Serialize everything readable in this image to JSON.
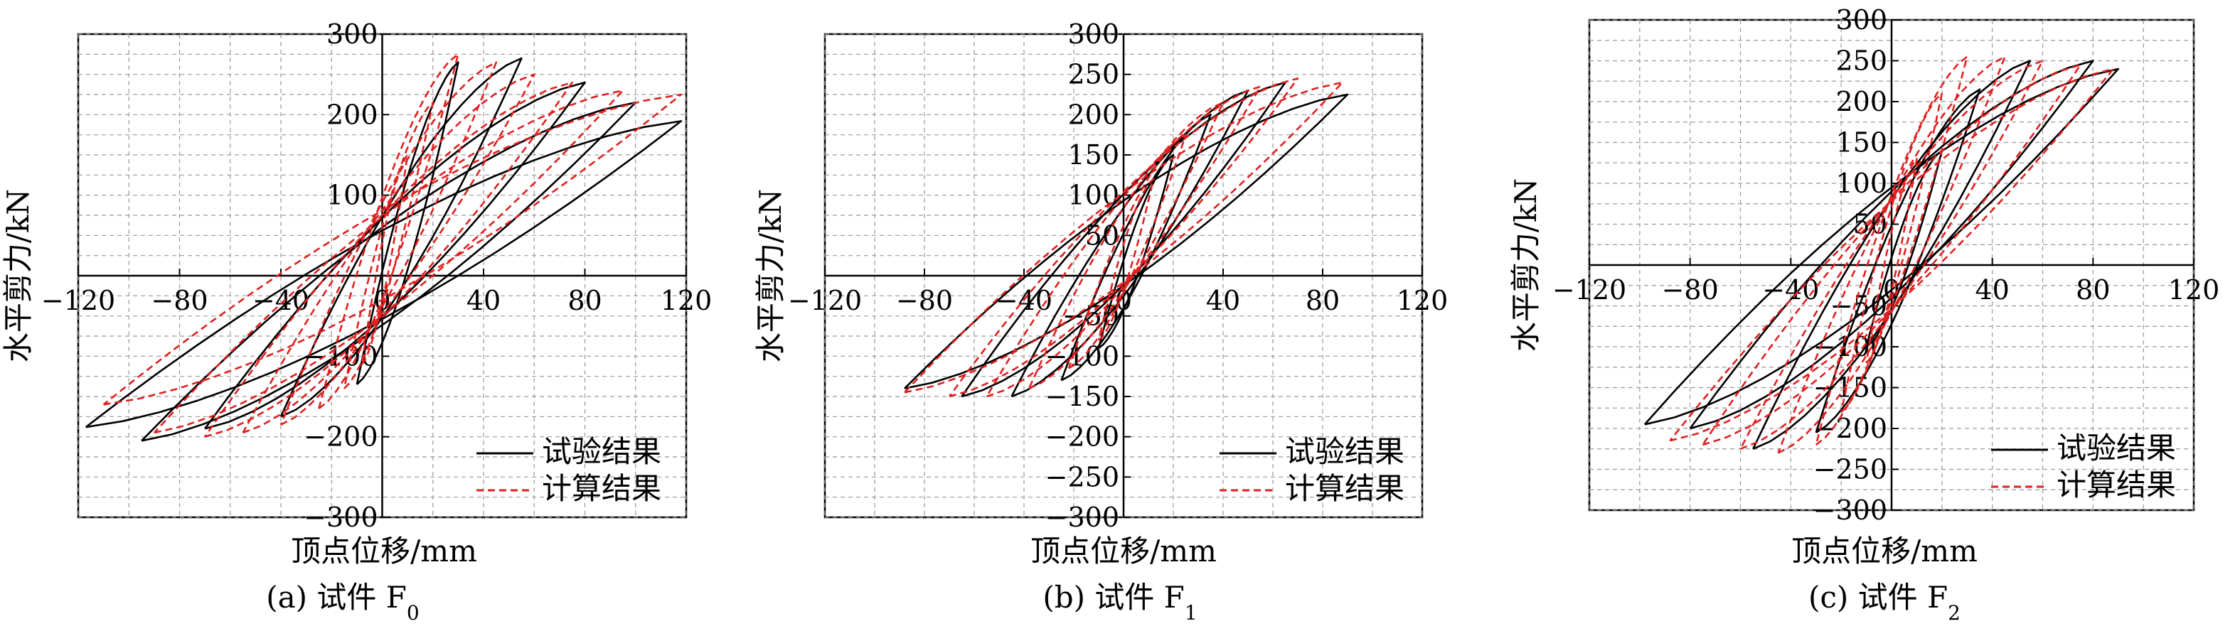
{
  "chart_data": [
    {
      "type": "line",
      "caption": "(a) 试件 F",
      "caption_sub": "0",
      "xlabel": "顶点位移/mm",
      "ylabel": "水平剪力/kN",
      "xlim": [
        -120,
        120
      ],
      "ylim": [
        -300,
        300
      ],
      "xticks": [
        -120,
        -80,
        -40,
        0,
        40,
        80,
        120
      ],
      "yticks": [
        -300,
        -200,
        -100,
        0,
        100,
        200,
        300
      ],
      "xtick_labels": [
        "−120",
        "−80",
        "−40",
        "0",
        "40",
        "80",
        "120"
      ],
      "ytick_labels": [
        "−300",
        "−200",
        "−100",
        "",
        "100",
        "200",
        "300"
      ],
      "grid": true,
      "legend_position": "bottom-right",
      "legend": [
        "试验结果",
        "计算结果"
      ],
      "series": [
        {
          "name": "试验结果",
          "color": "#000000",
          "style": "solid",
          "loops": [
            {
              "dmax": 30,
              "vmax": 265,
              "dmin": -10,
              "vmin": -135
            },
            {
              "dmax": 55,
              "vmax": 270,
              "dmin": -40,
              "vmin": -175
            },
            {
              "dmax": 80,
              "vmax": 240,
              "dmin": -70,
              "vmin": -190
            },
            {
              "dmax": 100,
              "vmax": 215,
              "dmin": -95,
              "vmin": -205
            },
            {
              "dmax": 118,
              "vmax": 192,
              "dmin": -117,
              "vmin": -188
            }
          ]
        },
        {
          "name": "计算结果",
          "color": "#e02020",
          "style": "dashed",
          "loops": [
            {
              "dmax": 10,
              "vmax": 150,
              "dmin": -8,
              "vmin": -110
            },
            {
              "dmax": 20,
              "vmax": 215,
              "dmin": -15,
              "vmin": -140
            },
            {
              "dmax": 30,
              "vmax": 275,
              "dmin": -25,
              "vmin": -165
            },
            {
              "dmax": 45,
              "vmax": 265,
              "dmin": -40,
              "vmin": -185
            },
            {
              "dmax": 60,
              "vmax": 250,
              "dmin": -55,
              "vmin": -195
            },
            {
              "dmax": 75,
              "vmax": 240,
              "dmin": -70,
              "vmin": -200
            },
            {
              "dmax": 95,
              "vmax": 230,
              "dmin": -90,
              "vmin": -195
            },
            {
              "dmax": 118,
              "vmax": 225,
              "dmin": -110,
              "vmin": -160
            }
          ]
        }
      ]
    },
    {
      "type": "line",
      "caption": "(b) 试件 F",
      "caption_sub": "1",
      "xlabel": "顶点位移/mm",
      "ylabel": "水平剪力/kN",
      "xlim": [
        -120,
        120
      ],
      "ylim": [
        -300,
        300
      ],
      "xticks": [
        -120,
        -80,
        -40,
        0,
        40,
        80,
        120
      ],
      "yticks": [
        -300,
        -250,
        -200,
        -150,
        -100,
        -50,
        0,
        50,
        100,
        150,
        200,
        250,
        300
      ],
      "xtick_labels": [
        "−120",
        "−80",
        "−40",
        "0",
        "40",
        "80",
        "120"
      ],
      "ytick_labels": [
        "−300",
        "−250",
        "−200",
        "−150",
        "−100",
        "−50",
        "",
        "50",
        "100",
        "150",
        "200",
        "250",
        "300"
      ],
      "grid": true,
      "legend_position": "bottom-right",
      "legend": [
        "试验结果",
        "计算结果"
      ],
      "series": [
        {
          "name": "试验结果",
          "color": "#000000",
          "style": "solid",
          "loops": [
            {
              "dmax": 20,
              "vmax": 150,
              "dmin": -10,
              "vmin": -90
            },
            {
              "dmax": 35,
              "vmax": 200,
              "dmin": -25,
              "vmin": -130
            },
            {
              "dmax": 50,
              "vmax": 230,
              "dmin": -45,
              "vmin": -150
            },
            {
              "dmax": 65,
              "vmax": 240,
              "dmin": -65,
              "vmin": -150
            },
            {
              "dmax": 90,
              "vmax": 225,
              "dmin": -88,
              "vmin": -140
            }
          ]
        },
        {
          "name": "计算结果",
          "color": "#e02020",
          "style": "dashed",
          "loops": [
            {
              "dmax": 12,
              "vmax": 120,
              "dmin": -10,
              "vmin": -80
            },
            {
              "dmax": 25,
              "vmax": 175,
              "dmin": -22,
              "vmin": -115
            },
            {
              "dmax": 40,
              "vmax": 215,
              "dmin": -38,
              "vmin": -140
            },
            {
              "dmax": 55,
              "vmax": 235,
              "dmin": -55,
              "vmin": -150
            },
            {
              "dmax": 70,
              "vmax": 245,
              "dmin": -70,
              "vmin": -150
            },
            {
              "dmax": 88,
              "vmax": 240,
              "dmin": -88,
              "vmin": -145
            }
          ]
        }
      ]
    },
    {
      "type": "line",
      "caption": "(c) 试件 F",
      "caption_sub": "2",
      "xlabel": "顶点位移/mm",
      "ylabel": "水平剪力/kN",
      "xlim": [
        -120,
        120
      ],
      "ylim": [
        -300,
        300
      ],
      "xticks": [
        -120,
        -80,
        -40,
        0,
        40,
        80,
        120
      ],
      "yticks": [
        -300,
        -250,
        -200,
        -150,
        -100,
        -50,
        0,
        50,
        100,
        150,
        200,
        250,
        300
      ],
      "xtick_labels": [
        "−120",
        "−80",
        "−40",
        "0",
        "40",
        "80",
        "120"
      ],
      "ytick_labels": [
        "−300",
        "−250",
        "−200",
        "−150",
        "−100",
        "−50",
        "",
        "50",
        "100",
        "150",
        "200",
        "250",
        "300"
      ],
      "grid": true,
      "legend_position": "bottom-right",
      "legend": [
        "试验结果",
        "计算结果"
      ],
      "series": [
        {
          "name": "试验结果",
          "color": "#000000",
          "style": "solid",
          "loops": [
            {
              "dmax": 20,
              "vmax": 140,
              "dmin": -10,
              "vmin": -100
            },
            {
              "dmax": 35,
              "vmax": 215,
              "dmin": -30,
              "vmin": -205
            },
            {
              "dmax": 55,
              "vmax": 250,
              "dmin": -55,
              "vmin": -225
            },
            {
              "dmax": 80,
              "vmax": 250,
              "dmin": -80,
              "vmin": -200
            },
            {
              "dmax": 90,
              "vmax": 240,
              "dmin": -98,
              "vmin": -195
            }
          ]
        },
        {
          "name": "计算结果",
          "color": "#e02020",
          "style": "dashed",
          "loops": [
            {
              "dmax": 10,
              "vmax": 130,
              "dmin": -10,
              "vmin": -120
            },
            {
              "dmax": 20,
              "vmax": 210,
              "dmin": -20,
              "vmin": -180
            },
            {
              "dmax": 30,
              "vmax": 255,
              "dmin": -30,
              "vmin": -220
            },
            {
              "dmax": 45,
              "vmax": 255,
              "dmin": -45,
              "vmin": -230
            },
            {
              "dmax": 60,
              "vmax": 250,
              "dmin": -60,
              "vmin": -225
            },
            {
              "dmax": 75,
              "vmax": 245,
              "dmin": -75,
              "vmin": -220
            },
            {
              "dmax": 88,
              "vmax": 240,
              "dmin": -88,
              "vmin": -215
            }
          ]
        }
      ]
    }
  ]
}
